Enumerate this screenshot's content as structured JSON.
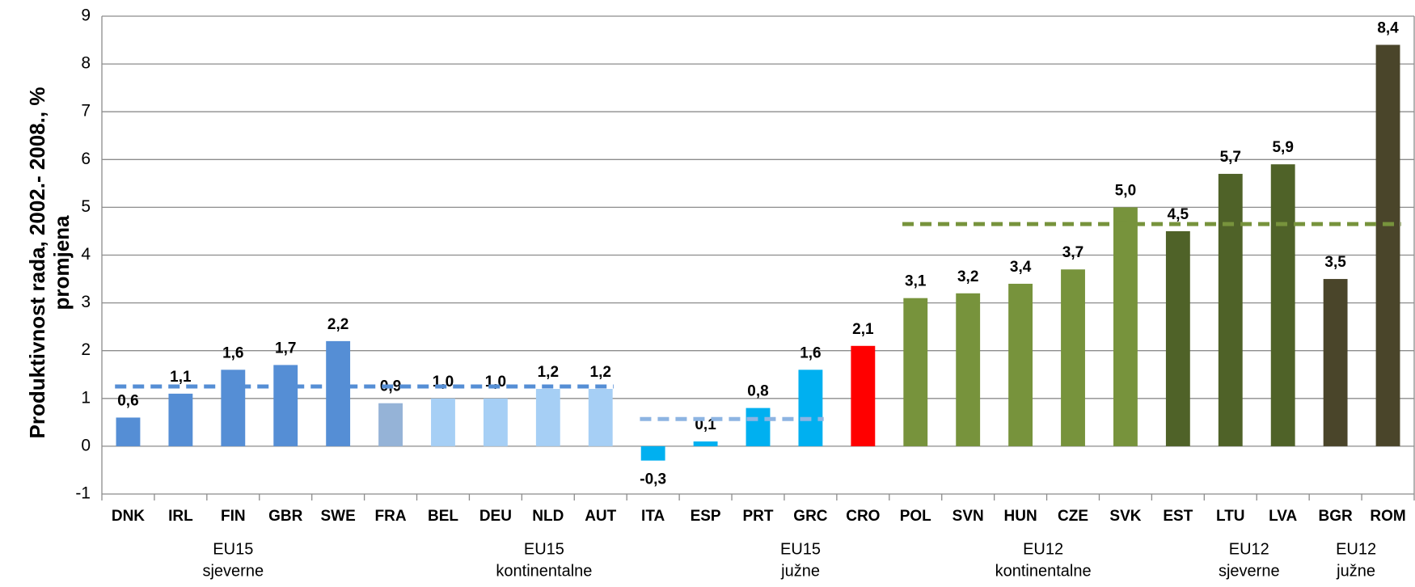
{
  "chart_data": {
    "type": "bar",
    "y_label": [
      "Produktivnost rada, 2002.- 2008., %",
      "promjena"
    ],
    "categories": [
      "DNK",
      "IRL",
      "FIN",
      "GBR",
      "SWE",
      "FRA",
      "BEL",
      "DEU",
      "NLD",
      "AUT",
      "ITA",
      "ESP",
      "PRT",
      "GRC",
      "CRO",
      "POL",
      "SVN",
      "HUN",
      "CZE",
      "SVK",
      "EST",
      "LTU",
      "LVA",
      "BGR",
      "ROM"
    ],
    "values": [
      0.6,
      1.1,
      1.6,
      1.7,
      2.2,
      0.9,
      1.0,
      1.0,
      1.2,
      1.2,
      -0.3,
      0.1,
      0.8,
      1.6,
      2.1,
      3.1,
      3.2,
      3.4,
      3.7,
      5.0,
      4.5,
      5.7,
      5.9,
      3.5,
      8.4
    ],
    "value_labels": [
      "0,6",
      "1,1",
      "1,6",
      "1,7",
      "2,2",
      "0,9",
      "1,0",
      "1,0",
      "1,2",
      "1,2",
      "-0,3",
      "0,1",
      "0,8",
      "1,6",
      "2,1",
      "3,1",
      "3,2",
      "3,4",
      "3,7",
      "5,0",
      "4,5",
      "5,7",
      "5,9",
      "3,5",
      "8,4"
    ],
    "colors": [
      "#558ed5",
      "#558ed5",
      "#558ed5",
      "#558ed5",
      "#558ed5",
      "#95b3d7",
      "#a6cff5",
      "#a6cff5",
      "#a6cff5",
      "#a6cff5",
      "#00b0f0",
      "#00b0f0",
      "#00b0f0",
      "#00b0f0",
      "#ff0000",
      "#77933c",
      "#77933c",
      "#77933c",
      "#77933c",
      "#77933c",
      "#4f6228",
      "#4f6228",
      "#4f6228",
      "#4a452a",
      "#4a452a"
    ],
    "averages": [
      {
        "value": 1.25,
        "from": "DNK",
        "to": "AUT",
        "color": "#558ed5"
      },
      {
        "value": 0.57,
        "from": "ITA",
        "to": "GRC",
        "color": "#8db4e2"
      },
      {
        "value": 4.65,
        "from": "POL",
        "to": "ROM",
        "color": "#77933c"
      }
    ],
    "groups": [
      {
        "label": [
          "EU15",
          "sjeverne"
        ],
        "from": "DNK",
        "to": "SWE"
      },
      {
        "label": [
          "EU15",
          "kontinentalne"
        ],
        "from": "FRA",
        "to": "AUT"
      },
      {
        "label": [
          "EU15",
          "južne"
        ],
        "from": "ITA",
        "to": "GRC"
      },
      {
        "label": [
          "EU12",
          "kontinentalne"
        ],
        "from": "POL",
        "to": "SVK"
      },
      {
        "label": [
          "EU12",
          "sjeverne"
        ],
        "from": "EST",
        "to": "LVA"
      },
      {
        "label": [
          "EU12",
          "južne"
        ],
        "from": "BGR",
        "to": "ROM"
      }
    ],
    "ylim": [
      -1,
      9
    ],
    "yticks": [
      -1,
      0,
      1,
      2,
      3,
      4,
      5,
      6,
      7,
      8,
      9
    ],
    "grid": true
  }
}
